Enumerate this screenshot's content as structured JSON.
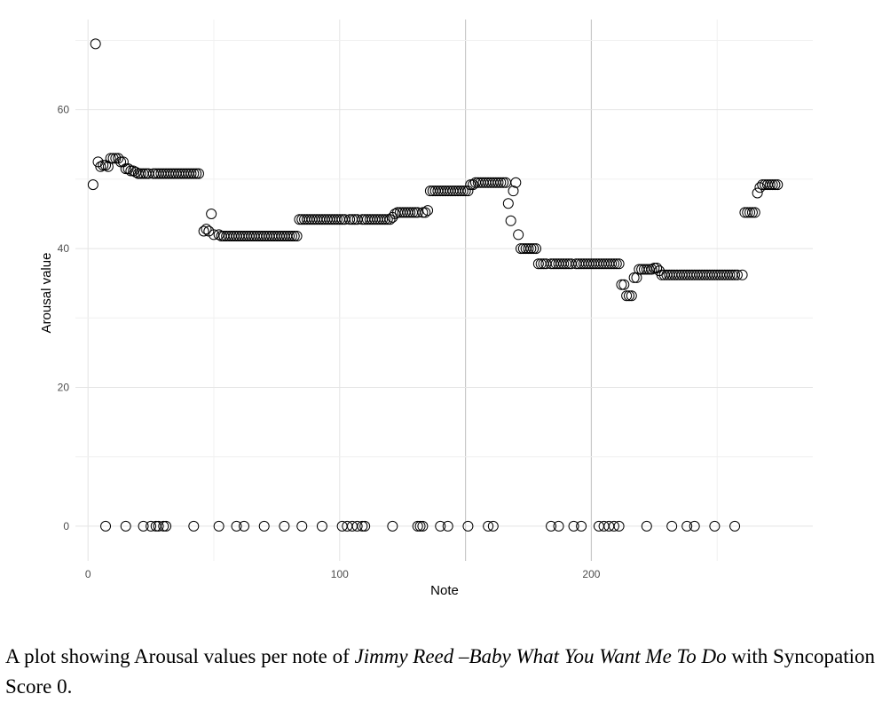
{
  "caption": {
    "prefix": "A plot showing Arousal values per note of ",
    "title": "Jimmy Reed –Baby What You Want Me To Do",
    "suffix": " with Syncopation Score 0."
  },
  "chart_data": {
    "type": "scatter",
    "xlabel": "Note",
    "ylabel": "Arousal value",
    "xlim": [
      -5,
      288
    ],
    "ylim": [
      -5,
      73
    ],
    "x_ticks": [
      0,
      100,
      200
    ],
    "y_ticks": [
      0,
      20,
      40,
      60
    ],
    "grid": true,
    "marker": "open-circle",
    "points": [
      [
        2,
        49.2
      ],
      [
        3,
        69.5
      ],
      [
        4,
        52.5
      ],
      [
        5,
        51.8
      ],
      [
        6,
        52
      ],
      [
        7,
        52
      ],
      [
        8,
        51.8
      ],
      [
        9,
        53
      ],
      [
        10,
        53
      ],
      [
        11,
        53
      ],
      [
        12,
        53
      ],
      [
        13,
        52.5
      ],
      [
        14,
        52.5
      ],
      [
        15,
        51.5
      ],
      [
        16,
        51.5
      ],
      [
        17,
        51.2
      ],
      [
        18,
        51.2
      ],
      [
        19,
        51
      ],
      [
        20,
        50.8
      ],
      [
        21,
        50.8
      ],
      [
        22,
        50.8
      ],
      [
        23,
        50.8
      ],
      [
        24,
        50.8
      ],
      [
        26,
        50.8
      ],
      [
        27,
        50.8
      ],
      [
        28,
        50.8
      ],
      [
        29,
        50.8
      ],
      [
        30,
        50.8
      ],
      [
        31,
        50.8
      ],
      [
        32,
        50.8
      ],
      [
        33,
        50.8
      ],
      [
        34,
        50.8
      ],
      [
        35,
        50.8
      ],
      [
        36,
        50.8
      ],
      [
        37,
        50.8
      ],
      [
        38,
        50.8
      ],
      [
        39,
        50.8
      ],
      [
        40,
        50.8
      ],
      [
        41,
        50.8
      ],
      [
        42,
        50.8
      ],
      [
        43,
        50.8
      ],
      [
        44,
        50.8
      ],
      [
        46,
        42.5
      ],
      [
        47,
        42.8
      ],
      [
        48,
        42.5
      ],
      [
        49,
        45
      ],
      [
        50,
        42
      ],
      [
        52,
        42
      ],
      [
        53,
        41.8
      ],
      [
        54,
        41.8
      ],
      [
        55,
        41.8
      ],
      [
        56,
        41.8
      ],
      [
        57,
        41.8
      ],
      [
        58,
        41.8
      ],
      [
        59,
        41.8
      ],
      [
        60,
        41.8
      ],
      [
        61,
        41.8
      ],
      [
        62,
        41.8
      ],
      [
        63,
        41.8
      ],
      [
        64,
        41.8
      ],
      [
        65,
        41.8
      ],
      [
        66,
        41.8
      ],
      [
        67,
        41.8
      ],
      [
        68,
        41.8
      ],
      [
        69,
        41.8
      ],
      [
        70,
        41.8
      ],
      [
        71,
        41.8
      ],
      [
        72,
        41.8
      ],
      [
        73,
        41.8
      ],
      [
        74,
        41.8
      ],
      [
        75,
        41.8
      ],
      [
        76,
        41.8
      ],
      [
        77,
        41.8
      ],
      [
        78,
        41.8
      ],
      [
        79,
        41.8
      ],
      [
        80,
        41.8
      ],
      [
        81,
        41.8
      ],
      [
        82,
        41.8
      ],
      [
        83,
        41.8
      ],
      [
        84,
        44.2
      ],
      [
        85,
        44.2
      ],
      [
        86,
        44.2
      ],
      [
        87,
        44.2
      ],
      [
        88,
        44.2
      ],
      [
        89,
        44.2
      ],
      [
        90,
        44.2
      ],
      [
        91,
        44.2
      ],
      [
        92,
        44.2
      ],
      [
        93,
        44.2
      ],
      [
        94,
        44.2
      ],
      [
        95,
        44.2
      ],
      [
        96,
        44.2
      ],
      [
        97,
        44.2
      ],
      [
        98,
        44.2
      ],
      [
        99,
        44.2
      ],
      [
        100,
        44.2
      ],
      [
        101,
        44.2
      ],
      [
        102,
        44.2
      ],
      [
        104,
        44.2
      ],
      [
        105,
        44.2
      ],
      [
        106,
        44.2
      ],
      [
        107,
        44.2
      ],
      [
        109,
        44.2
      ],
      [
        110,
        44.2
      ],
      [
        111,
        44.2
      ],
      [
        112,
        44.2
      ],
      [
        113,
        44.2
      ],
      [
        114,
        44.2
      ],
      [
        115,
        44.2
      ],
      [
        116,
        44.2
      ],
      [
        117,
        44.2
      ],
      [
        118,
        44.2
      ],
      [
        119,
        44.2
      ],
      [
        120,
        44.2
      ],
      [
        121,
        44.5
      ],
      [
        122,
        45
      ],
      [
        123,
        45.2
      ],
      [
        124,
        45.2
      ],
      [
        125,
        45.2
      ],
      [
        126,
        45.2
      ],
      [
        127,
        45.2
      ],
      [
        128,
        45.2
      ],
      [
        129,
        45.2
      ],
      [
        130,
        45.2
      ],
      [
        131,
        45.2
      ],
      [
        133,
        45.2
      ],
      [
        134,
        45.2
      ],
      [
        135,
        45.5
      ],
      [
        136,
        48.3
      ],
      [
        137,
        48.3
      ],
      [
        138,
        48.3
      ],
      [
        139,
        48.3
      ],
      [
        140,
        48.3
      ],
      [
        141,
        48.3
      ],
      [
        142,
        48.3
      ],
      [
        143,
        48.3
      ],
      [
        144,
        48.3
      ],
      [
        145,
        48.3
      ],
      [
        146,
        48.3
      ],
      [
        147,
        48.3
      ],
      [
        148,
        48.3
      ],
      [
        149,
        48.3
      ],
      [
        150,
        48.3
      ],
      [
        151,
        48.3
      ],
      [
        152,
        49.2
      ],
      [
        153,
        49.2
      ],
      [
        154,
        49.5
      ],
      [
        155,
        49.5
      ],
      [
        156,
        49.5
      ],
      [
        157,
        49.5
      ],
      [
        158,
        49.5
      ],
      [
        159,
        49.5
      ],
      [
        160,
        49.5
      ],
      [
        161,
        49.5
      ],
      [
        162,
        49.5
      ],
      [
        163,
        49.5
      ],
      [
        164,
        49.5
      ],
      [
        165,
        49.5
      ],
      [
        166,
        49.5
      ],
      [
        167,
        46.5
      ],
      [
        168,
        44
      ],
      [
        169,
        48.3
      ],
      [
        170,
        49.5
      ],
      [
        171,
        42
      ],
      [
        172,
        40
      ],
      [
        173,
        40
      ],
      [
        174,
        40
      ],
      [
        175,
        40
      ],
      [
        176,
        40
      ],
      [
        177,
        40
      ],
      [
        178,
        40
      ],
      [
        179,
        37.8
      ],
      [
        180,
        37.8
      ],
      [
        181,
        37.8
      ],
      [
        182,
        37.8
      ],
      [
        184,
        37.8
      ],
      [
        185,
        37.8
      ],
      [
        186,
        37.8
      ],
      [
        187,
        37.8
      ],
      [
        188,
        37.8
      ],
      [
        189,
        37.8
      ],
      [
        190,
        37.8
      ],
      [
        191,
        37.8
      ],
      [
        192,
        37.8
      ],
      [
        194,
        37.8
      ],
      [
        195,
        37.8
      ],
      [
        196,
        37.8
      ],
      [
        197,
        37.8
      ],
      [
        198,
        37.8
      ],
      [
        199,
        37.8
      ],
      [
        200,
        37.8
      ],
      [
        201,
        37.8
      ],
      [
        202,
        37.8
      ],
      [
        203,
        37.8
      ],
      [
        204,
        37.8
      ],
      [
        205,
        37.8
      ],
      [
        206,
        37.8
      ],
      [
        207,
        37.8
      ],
      [
        208,
        37.8
      ],
      [
        209,
        37.8
      ],
      [
        210,
        37.8
      ],
      [
        211,
        37.8
      ],
      [
        212,
        34.8
      ],
      [
        213,
        34.8
      ],
      [
        214,
        33.2
      ],
      [
        215,
        33.2
      ],
      [
        216,
        33.2
      ],
      [
        217,
        35.8
      ],
      [
        218,
        35.8
      ],
      [
        219,
        37
      ],
      [
        220,
        37
      ],
      [
        221,
        37
      ],
      [
        222,
        37
      ],
      [
        223,
        37
      ],
      [
        224,
        37
      ],
      [
        225,
        37.2
      ],
      [
        226,
        37.2
      ],
      [
        227,
        36.8
      ],
      [
        228,
        36.2
      ],
      [
        229,
        36.2
      ],
      [
        230,
        36.2
      ],
      [
        231,
        36.2
      ],
      [
        232,
        36.2
      ],
      [
        233,
        36.2
      ],
      [
        234,
        36.2
      ],
      [
        235,
        36.2
      ],
      [
        236,
        36.2
      ],
      [
        237,
        36.2
      ],
      [
        238,
        36.2
      ],
      [
        239,
        36.2
      ],
      [
        240,
        36.2
      ],
      [
        241,
        36.2
      ],
      [
        242,
        36.2
      ],
      [
        243,
        36.2
      ],
      [
        244,
        36.2
      ],
      [
        245,
        36.2
      ],
      [
        246,
        36.2
      ],
      [
        247,
        36.2
      ],
      [
        248,
        36.2
      ],
      [
        249,
        36.2
      ],
      [
        250,
        36.2
      ],
      [
        251,
        36.2
      ],
      [
        252,
        36.2
      ],
      [
        253,
        36.2
      ],
      [
        254,
        36.2
      ],
      [
        255,
        36.2
      ],
      [
        256,
        36.2
      ],
      [
        257,
        36.2
      ],
      [
        258,
        36.2
      ],
      [
        260,
        36.2
      ],
      [
        261,
        45.2
      ],
      [
        262,
        45.2
      ],
      [
        263,
        45.2
      ],
      [
        264,
        45.2
      ],
      [
        265,
        45.2
      ],
      [
        266,
        48
      ],
      [
        267,
        48.8
      ],
      [
        268,
        49.2
      ],
      [
        269,
        49.2
      ],
      [
        270,
        49.2
      ],
      [
        271,
        49.2
      ],
      [
        272,
        49.2
      ],
      [
        273,
        49.2
      ],
      [
        274,
        49.2
      ],
      [
        7,
        0
      ],
      [
        15,
        0
      ],
      [
        22,
        0
      ],
      [
        25,
        0
      ],
      [
        27,
        0
      ],
      [
        28,
        0
      ],
      [
        30,
        0
      ],
      [
        31,
        0
      ],
      [
        42,
        0
      ],
      [
        52,
        0
      ],
      [
        59,
        0
      ],
      [
        62,
        0
      ],
      [
        70,
        0
      ],
      [
        78,
        0
      ],
      [
        85,
        0
      ],
      [
        93,
        0
      ],
      [
        101,
        0
      ],
      [
        103,
        0
      ],
      [
        105,
        0
      ],
      [
        107,
        0
      ],
      [
        109,
        0
      ],
      [
        110,
        0
      ],
      [
        121,
        0
      ],
      [
        131,
        0
      ],
      [
        132,
        0
      ],
      [
        133,
        0
      ],
      [
        140,
        0
      ],
      [
        143,
        0
      ],
      [
        151,
        0
      ],
      [
        159,
        0
      ],
      [
        161,
        0
      ],
      [
        184,
        0
      ],
      [
        187,
        0
      ],
      [
        193,
        0
      ],
      [
        196,
        0
      ],
      [
        203,
        0
      ],
      [
        205,
        0
      ],
      [
        207,
        0
      ],
      [
        209,
        0
      ],
      [
        211,
        0
      ],
      [
        222,
        0
      ],
      [
        232,
        0
      ],
      [
        238,
        0
      ],
      [
        241,
        0
      ],
      [
        249,
        0
      ],
      [
        257,
        0
      ]
    ]
  }
}
